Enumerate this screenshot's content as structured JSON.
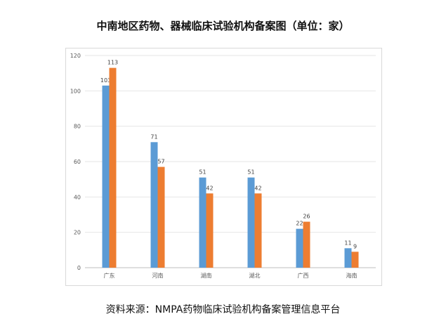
{
  "chart_data": {
    "type": "bar",
    "title": "中南地区药物、器械临床试验机构备案图（单位：家）",
    "categories": [
      "广东",
      "河南",
      "湖南",
      "湖北",
      "广西",
      "海南"
    ],
    "series": [
      {
        "values": [
          103,
          71,
          51,
          51,
          22,
          11
        ],
        "color": "#5b9bd5"
      },
      {
        "values": [
          113,
          57,
          42,
          42,
          26,
          9
        ],
        "color": "#ed7d31"
      }
    ],
    "ylim": [
      0,
      120
    ],
    "yticks": [
      0,
      20,
      40,
      60,
      80,
      100,
      120
    ],
    "grid": true,
    "legend": "none"
  },
  "source_text": "资料来源：NMPA药物临床试验机构备案管理信息平台"
}
